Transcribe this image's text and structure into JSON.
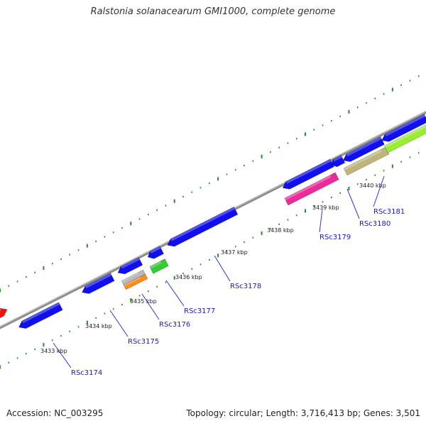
{
  "title": "Ralstonia solanacearum GMI1000, complete genome",
  "footer": {
    "accession": "Accession: NC_003295",
    "summary": "Topology: circular; Length: 3,716,413 bp; Genes: 3,501"
  },
  "kbp_ticks": [
    "3433 kbp",
    "3434 kbp",
    "3435 kbp",
    "3436 kbp",
    "3437 kbp",
    "3438 kbp",
    "3439 kbp",
    "3440 kbp"
  ],
  "gene_labels": [
    "RSc3174",
    "RSc3175",
    "RSc3176",
    "RSc3177",
    "RSc3178",
    "RSc3179",
    "RSc3180",
    "RSc3181"
  ],
  "colors": {
    "backbone": "#8c8c8c",
    "tick_dots": "#2a8a2a",
    "gene_blue": "#1010ee",
    "gene_red": "#ee1111",
    "gene_grey": "#b8b8b8",
    "gene_orange": "#ff8c1a",
    "gene_green": "#33cc33",
    "gene_pink": "#ee2a9a",
    "gene_khaki": "#bfb57a",
    "gene_lime": "#99ee33",
    "label_blue": "#1a1acc"
  }
}
